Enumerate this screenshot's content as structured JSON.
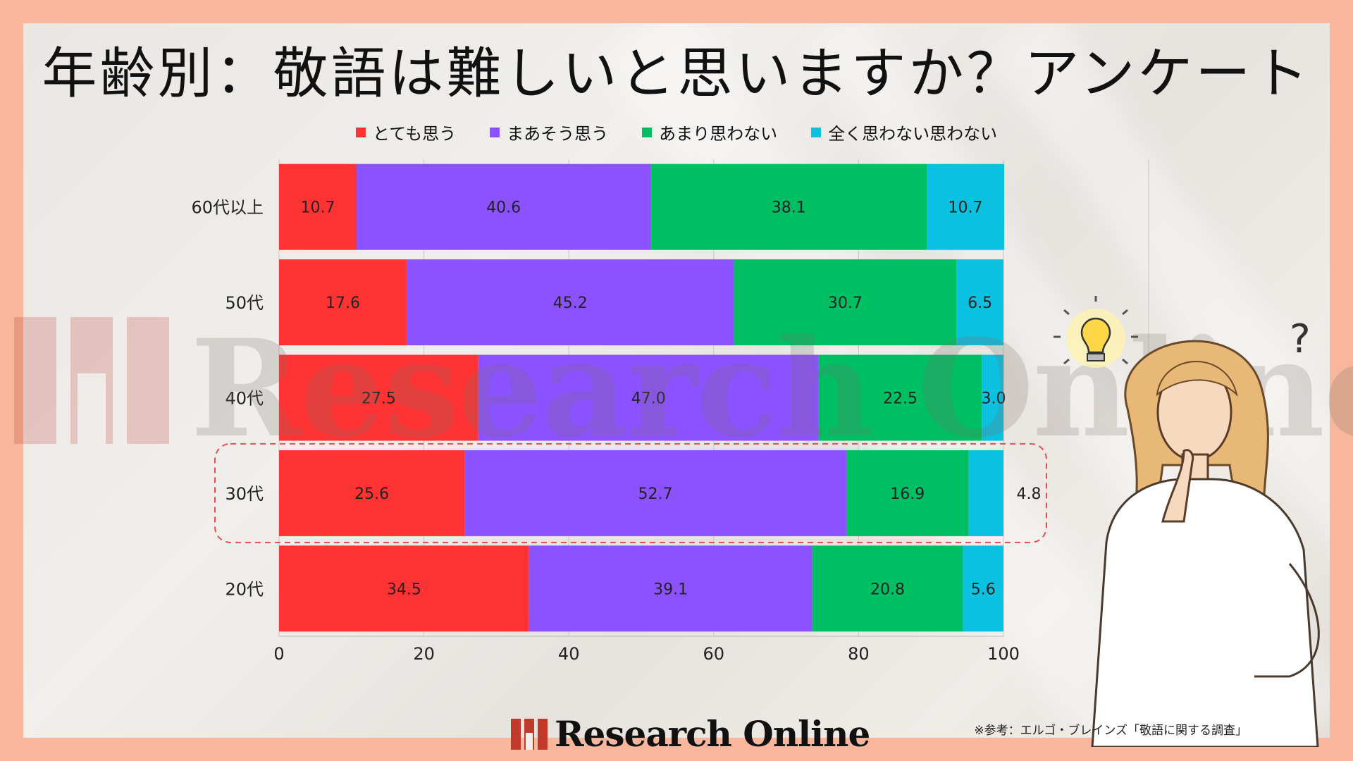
{
  "title": "年齢別：敬語は難しいと思いますか？アンケート",
  "legend": [
    {
      "label": "とても思う",
      "color": "#ff3333"
    },
    {
      "label": "まあそう思う",
      "color": "#8c52ff"
    },
    {
      "label": "あまり思わない",
      "color": "#00bf63"
    },
    {
      "label": "全く思わない思わない",
      "color": "#0cc0df"
    }
  ],
  "watermark": "Research Online",
  "footer": {
    "brand": "Research Online"
  },
  "source": "※参考：エルゴ・ブレインズ「敬語に関する調査」",
  "chart_data": {
    "type": "bar",
    "orientation": "horizontal",
    "stacked": true,
    "categories": [
      "60代以上",
      "50代",
      "40代",
      "30代",
      "20代"
    ],
    "series": [
      {
        "name": "とても思う",
        "values": [
          10.7,
          17.6,
          27.5,
          25.6,
          34.5
        ]
      },
      {
        "name": "まあそう思う",
        "values": [
          40.6,
          45.2,
          47.0,
          52.7,
          39.1
        ]
      },
      {
        "name": "あまり思わない",
        "values": [
          38.1,
          30.7,
          22.5,
          16.9,
          20.8
        ]
      },
      {
        "name": "全く思わない思わない",
        "values": [
          10.7,
          6.5,
          3.0,
          4.8,
          5.6
        ]
      }
    ],
    "value_labels": [
      [
        "10.7",
        "40.6",
        "38.1",
        "10.7"
      ],
      [
        "17.6",
        "45.2",
        "30.7",
        "6.5"
      ],
      [
        "27.5",
        "47.0",
        "22.5",
        "3.0"
      ],
      [
        "25.6",
        "52.7",
        "16.9",
        "4.8"
      ],
      [
        "34.5",
        "39.1",
        "20.8",
        "5.6"
      ]
    ],
    "xlim": [
      0,
      100
    ],
    "xticks": [
      "0",
      "20",
      "40",
      "60",
      "80",
      "100"
    ],
    "highlighted_category": "30代",
    "grid": true,
    "legend_position": "top"
  }
}
